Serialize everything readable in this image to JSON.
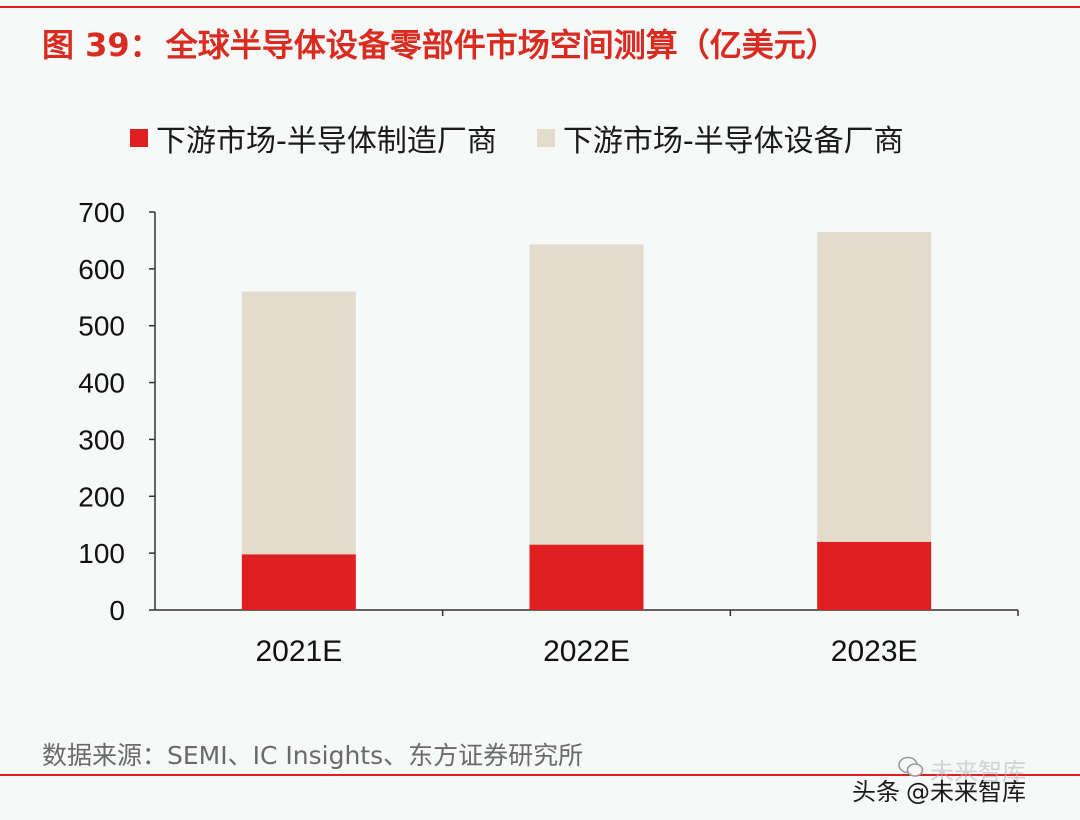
{
  "figure": {
    "number": "图 39：",
    "title": "全球半导体设备零部件市场空间测算（亿美元）"
  },
  "chart_data": {
    "type": "bar",
    "stacked": true,
    "categories": [
      "2021E",
      "2022E",
      "2023E"
    ],
    "series": [
      {
        "name": "下游市场-半导体制造厂商",
        "color": "#e02020",
        "values": [
          98,
          115,
          120
        ]
      },
      {
        "name": "下游市场-半导体设备厂商",
        "color": "#e3dbcc",
        "values": [
          462,
          528,
          545
        ]
      }
    ],
    "ylim": [
      0,
      700
    ],
    "yticks": [
      "0",
      "100",
      "200",
      "300",
      "400",
      "500",
      "600",
      "700"
    ],
    "xlabel": "",
    "ylabel": "",
    "legend_position": "top"
  },
  "source": "数据来源：SEMI、IC Insights、东方证券研究所",
  "watermark": {
    "platform": "头条",
    "account": "@未来智库",
    "faded": "未来智库"
  }
}
